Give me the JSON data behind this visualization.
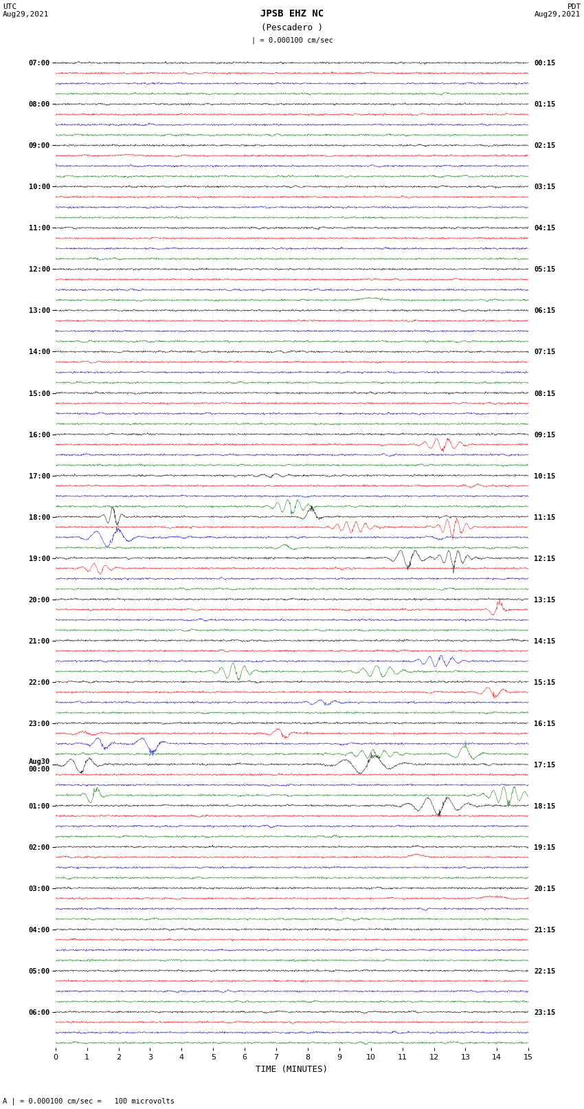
{
  "title_line1": "JPSB EHZ NC",
  "title_line2": "(Pescadero )",
  "scale_label": "| = 0.000100 cm/sec",
  "left_header": "UTC\nAug29,2021",
  "right_header": "PDT\nAug29,2021",
  "xlabel": "TIME (MINUTES)",
  "footer": "A | = 0.000100 cm/sec =   100 microvolts",
  "left_times_labels": [
    "07:00",
    "08:00",
    "09:00",
    "10:00",
    "11:00",
    "12:00",
    "13:00",
    "14:00",
    "15:00",
    "16:00",
    "17:00",
    "18:00",
    "19:00",
    "20:00",
    "21:00",
    "22:00",
    "23:00",
    "Aug30\n00:00",
    "01:00",
    "02:00",
    "03:00",
    "04:00",
    "05:00",
    "06:00"
  ],
  "right_times_labels": [
    "00:15",
    "01:15",
    "02:15",
    "03:15",
    "04:15",
    "05:15",
    "06:15",
    "07:15",
    "08:15",
    "09:15",
    "10:15",
    "11:15",
    "12:15",
    "13:15",
    "14:15",
    "15:15",
    "16:15",
    "17:15",
    "18:15",
    "19:15",
    "20:15",
    "21:15",
    "22:15",
    "23:15"
  ],
  "n_rows": 96,
  "n_points": 1500,
  "colors_cycle": [
    "black",
    "red",
    "blue",
    "green"
  ],
  "bg_color": "white",
  "fig_width": 8.5,
  "fig_height": 16.13,
  "xmin": 0,
  "xmax": 15,
  "xticks": [
    0,
    1,
    2,
    3,
    4,
    5,
    6,
    7,
    8,
    9,
    10,
    11,
    12,
    13,
    14,
    15
  ]
}
